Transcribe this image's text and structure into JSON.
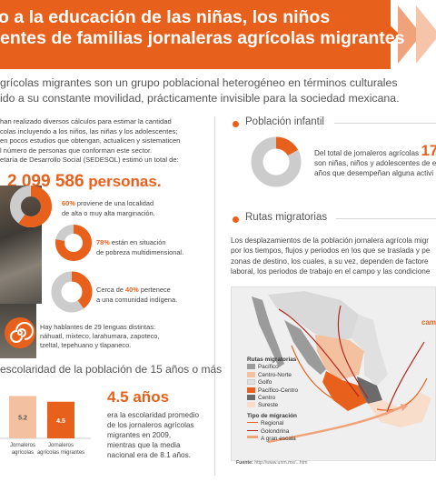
{
  "header": {
    "title_line1": "o a la educación de las niñas, los niños",
    "title_line2": "entes de familias jornaleras agrícolas migrantes"
  },
  "intro": {
    "line1": "grícolas migrantes son un grupo poblacional heterogéneo en términos culturales",
    "line2": "ido a su constante movilidad, prácticamente invisible para la sociedad mexicana."
  },
  "left": {
    "para_lines": [
      "han realizado diversos cálculos para estimar la cantidad",
      "colas incluyendo a los niños, las niñas y los adolescentes;",
      "en pocos estudios que obtengan, actualicen y sistematicen",
      "l número de personas que conforman este sector.",
      "etaría de Desarrollo Social (SEDESOL) estimó un total de:"
    ],
    "total_number": "2 099 586",
    "total_suffix": " personas.",
    "stats": [
      {
        "pct": "60%",
        "line1": " proviene de una localidad",
        "line2": "de alta o muy alta marginación."
      },
      {
        "pct": "78%",
        "line1": " están en situación",
        "line2": "de pobreza multidimensional."
      },
      {
        "pre": "Cerca de ",
        "pct": "40%",
        "line1": " pertenece",
        "line2": "a una comunidad indígena."
      }
    ],
    "languages": {
      "line1": "Hay hablantes de 29 lenguas distintas:",
      "line2": "náhuatl, mixteco, larahumara, zapoteco,",
      "line3": "tzeltal, tepehuano y tlapaneco."
    },
    "schooling_heading": "escolaridad de la población de 15 años o más",
    "years_big": "4.5 años",
    "years_text": [
      "era la escolaridad promedio",
      "de los jornaleros agrícolas",
      "migrantes en 2009,",
      "mientras que la media",
      "nacional era de 8.1 años."
    ]
  },
  "chart_data": {
    "type": "bar",
    "categories": [
      "Jornaleros agrícolas",
      "Jornaleros agrícolas migrantes"
    ],
    "values": [
      5.2,
      4.5
    ],
    "ylim": [
      0,
      9
    ]
  },
  "right": {
    "pop_heading": "Población infantil",
    "pop_text": {
      "line1": "Del total de jornaleros agrícolas",
      "big": "17",
      "line2": "son niñas, niños y adolescentes de e",
      "line3": "años que desempeñan alguna activi"
    },
    "rutas_heading": "Rutas migratorias",
    "rutas_lines": [
      "Los desplazamientos de la población jornalera agrícola migr",
      "por los tiempos, flujos y periodos en los que se traslada y pe",
      "zonas de destino, los cuales, a su vez, dependen de factore",
      "laboral, los periodos de trabajo en el campo y las condicione"
    ],
    "legend": {
      "title": "Rutas migratorias",
      "regions": [
        {
          "name": "Pacífico",
          "color": "#9b9b9b"
        },
        {
          "name": "Centro-Norte",
          "color": "#f3c19f"
        },
        {
          "name": "Golfo",
          "color": "#e0e0e0"
        },
        {
          "name": "Pacífico-Centro",
          "color": "#e8611c"
        },
        {
          "name": "Centro",
          "color": "#6b6b6b"
        },
        {
          "name": "Sureste",
          "color": "#f8ddca"
        }
      ],
      "type_title": "Tipo de migración",
      "types": [
        {
          "name": "Regional",
          "color": "#e8611c"
        },
        {
          "name": "Golondrina",
          "color": "#b0281e"
        },
        {
          "name": "A gran escala",
          "color": "#f0a27a"
        }
      ]
    },
    "cambio": "camb",
    "source_label": "Fuente:",
    "source_url": "http://www.unm.mx/...htm"
  },
  "colors": {
    "accent": "#e8611c",
    "light_accent": "#f3c19f",
    "gray": "#cccccc"
  }
}
